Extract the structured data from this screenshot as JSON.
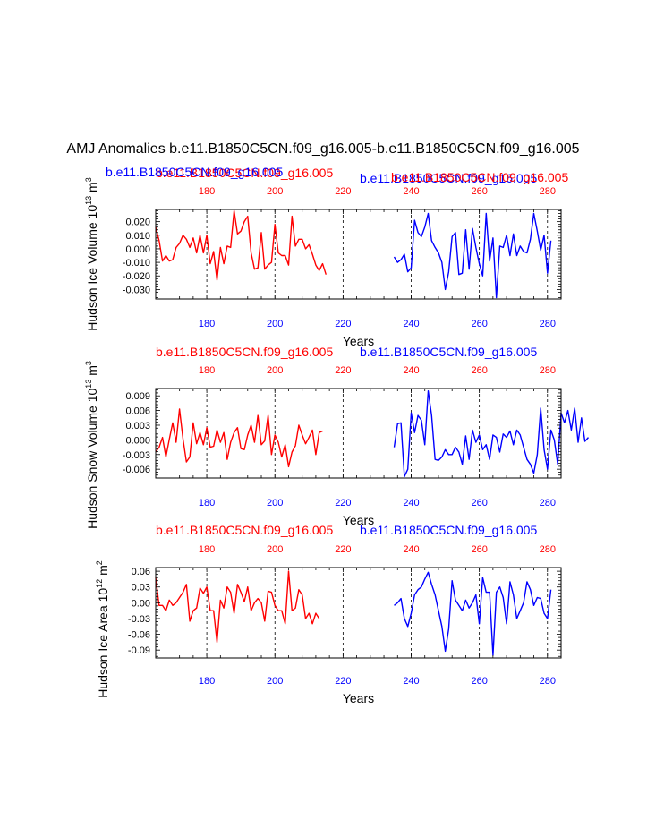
{
  "title": "AMJ Anomalies b.e11.B1850C5CN.f09_g16.005-b.e11.B1850C5CN.f09_g16.005",
  "colors": {
    "run1": "#ff0000",
    "run2": "#0000ff",
    "axis": "#000000",
    "grid": "#000000"
  },
  "chart_data": [
    {
      "type": "line",
      "panel": "ice-volume",
      "ylabel_main": "Hudson Ice Volume 10",
      "ylabel_exp": "13",
      "ylabel_unit": " m",
      "ylabel_unit_exp": "3",
      "xlabel": "Years",
      "xlim": [
        165,
        284
      ],
      "ylim": [
        -0.037,
        0.029
      ],
      "xticks": [
        180,
        200,
        220,
        240,
        260,
        280
      ],
      "yticks": [
        -0.03,
        -0.02,
        -0.01,
        0.0,
        0.01,
        0.02
      ],
      "ytick_labels": [
        "-0.030",
        "-0.020",
        "-0.010",
        "0.000",
        "0.010",
        "0.020"
      ],
      "red_top_tick_labels": [
        "180",
        "200",
        "220",
        "240",
        "260",
        "280"
      ],
      "blue_bottom_tick_labels": [
        "180",
        "200",
        "220",
        "240",
        "260",
        "280"
      ],
      "series_titles": [
        {
          "name": "run-1-red",
          "text": "b.e11.B1850C5CN.f09_g16.005"
        },
        {
          "name": "run-2-blue",
          "text": "b.e11.B1850C5CN.f09_g16.005"
        },
        {
          "name": "run-1-red-overlap",
          "text": "b.e11.B1850C5CN.f09_g16.005"
        },
        {
          "name": "run-2-blue-overlap",
          "text": "b.e11.B1850C5CN.f09_g16.005"
        }
      ],
      "series": [
        {
          "name": "b.e11.B1850C5CN.f09_g16.005",
          "color": "red",
          "x0": 165,
          "values": [
            0.016,
            0.006,
            -0.009,
            -0.005,
            -0.009,
            -0.008,
            0.001,
            0.004,
            0.01,
            0.007,
            0.001,
            0.008,
            -0.003,
            0.01,
            -0.003,
            0.01,
            -0.011,
            -0.002,
            -0.023,
            0.001,
            -0.011,
            0.002,
            0.001,
            0.028,
            0.011,
            0.013,
            0.02,
            0.024,
            -0.003,
            -0.015,
            -0.014,
            0.012,
            -0.015,
            -0.012,
            -0.01,
            0.018,
            -0.003,
            -0.005,
            -0.005,
            -0.012,
            0.024,
            0.002,
            0.007,
            0.007,
            0.0,
            0.003,
            -0.004,
            -0.012,
            -0.016,
            -0.011,
            -0.019
          ]
        },
        {
          "name": "b.e11.B1850C5CN.f09_g16.005",
          "color": "blue",
          "x0": 235,
          "values": [
            -0.006,
            -0.01,
            -0.008,
            -0.004,
            -0.017,
            -0.014,
            0.021,
            0.012,
            0.009,
            0.016,
            0.026,
            0.006,
            0.001,
            -0.003,
            -0.01,
            -0.03,
            -0.017,
            0.009,
            0.012,
            -0.019,
            -0.018,
            0.014,
            -0.015,
            0.015,
            0.001,
            -0.011,
            -0.02,
            0.026,
            -0.009,
            0.008,
            -0.036,
            0.002,
            0.001,
            0.01,
            -0.005,
            0.011,
            -0.005,
            0.002,
            -0.002,
            -0.003,
            0.007,
            0.026,
            0.013,
            -0.001,
            0.01,
            -0.018,
            0.006
          ]
        }
      ]
    },
    {
      "type": "line",
      "panel": "snow-volume",
      "ylabel_main": "Hudson Snow Volume 10",
      "ylabel_exp": "13",
      "ylabel_unit": " m",
      "ylabel_unit_exp": "3",
      "xlabel": "Years",
      "xlim": [
        165,
        284
      ],
      "ylim": [
        -0.0078,
        0.0105
      ],
      "xticks": [
        180,
        200,
        220,
        240,
        260,
        280
      ],
      "yticks": [
        -0.006,
        -0.003,
        0.0,
        0.003,
        0.006,
        0.009
      ],
      "ytick_labels": [
        "-0.006",
        "-0.003",
        "0.000",
        "0.003",
        "0.006",
        "0.009"
      ],
      "red_top_tick_labels": [
        "180",
        "200",
        "220",
        "240",
        "260",
        "280"
      ],
      "blue_bottom_tick_labels": [
        "180",
        "200",
        "220",
        "240",
        "260",
        "280"
      ],
      "series_titles": [
        {
          "name": "run-1-red",
          "text": "b.e11.B1850C5CN.f09_g16.005"
        },
        {
          "name": "run-2-blue",
          "text": "b.e11.B1850C5CN.f09_g16.005"
        }
      ],
      "series": [
        {
          "name": "b.e11.B1850C5CN.f09_g16.005",
          "color": "red",
          "x0": 165,
          "values": [
            -0.0025,
            -0.0015,
            0.0005,
            -0.0035,
            0.0001,
            0.0035,
            -0.0005,
            0.0063,
            0.0002,
            -0.0045,
            -0.0035,
            0.0035,
            -0.0008,
            0.0015,
            -0.001,
            0.0025,
            -0.0015,
            -0.0013,
            0.002,
            -0.0005,
            0.0015,
            -0.004,
            -0.0005,
            0.0015,
            0.0025,
            -0.0018,
            -0.002,
            0.001,
            0.003,
            -0.0005,
            0.005,
            -0.001,
            -0.0002,
            0.005,
            -0.003,
            0.001,
            -0.0005,
            -0.0035,
            -0.001,
            -0.0055,
            -0.0025,
            -0.0012,
            0.003,
            0.001,
            -0.0008,
            0.0005,
            0.002,
            -0.003,
            0.0015,
            0.0018
          ]
        },
        {
          "name": "b.e11.B1850C5CN.f09_g16.005",
          "color": "blue",
          "x0": 235,
          "values": [
            -0.0015,
            0.0033,
            0.0035,
            -0.0075,
            -0.006,
            0.0055,
            0.0015,
            0.005,
            0.004,
            -0.001,
            0.01,
            0.005,
            -0.004,
            -0.0042,
            -0.0035,
            -0.002,
            -0.003,
            -0.003,
            -0.0015,
            -0.0025,
            -0.005,
            0.0008,
            -0.004,
            0.002,
            -0.0005,
            0.001,
            -0.002,
            -0.001,
            -0.004,
            0.001,
            0.0005,
            -0.0025,
            0.0012,
            0.0005,
            0.0018,
            -0.001,
            0.002,
            0.001,
            -0.0015,
            -0.004,
            -0.005,
            -0.0068,
            -0.003,
            0.0065,
            -0.002,
            -0.006,
            0.002,
            0.0,
            -0.005,
            0.0055,
            0.0035,
            0.006,
            0.002,
            0.0065,
            -0.0005,
            0.0045,
            -0.0003,
            0.0005
          ]
        }
      ]
    },
    {
      "type": "line",
      "panel": "ice-area",
      "ylabel_main": "Hudson Ice Area 10",
      "ylabel_exp": "12",
      "ylabel_unit": " m",
      "ylabel_unit_exp": "2",
      "xlabel": "Years",
      "xlim": [
        165,
        284
      ],
      "ylim": [
        -0.105,
        0.067
      ],
      "xticks": [
        180,
        200,
        220,
        240,
        260,
        280
      ],
      "yticks": [
        -0.09,
        -0.06,
        -0.03,
        0.0,
        0.03,
        0.06
      ],
      "ytick_labels": [
        "-0.09",
        "-0.06",
        "-0.03",
        "0.00",
        "0.03",
        "0.06"
      ],
      "red_top_tick_labels": [
        "180",
        "200",
        "220",
        "240",
        "260",
        "280"
      ],
      "blue_bottom_tick_labels": [
        "180",
        "200",
        "220",
        "240",
        "260",
        "280"
      ],
      "series_titles": [
        {
          "name": "run-1-red",
          "text": "b.e11.B1850C5CN.f09_g16.005"
        },
        {
          "name": "run-2-blue",
          "text": "b.e11.B1850C5CN.f09_g16.005"
        }
      ],
      "series": [
        {
          "name": "b.e11.B1850C5CN.f09_g16.005",
          "color": "red",
          "x0": 165,
          "values": [
            0.048,
            -0.005,
            -0.005,
            -0.015,
            0.005,
            -0.005,
            0.0,
            0.01,
            0.02,
            0.035,
            -0.035,
            -0.015,
            -0.01,
            0.028,
            0.018,
            0.03,
            -0.015,
            -0.015,
            -0.075,
            0.005,
            -0.01,
            0.03,
            0.02,
            -0.02,
            0.035,
            0.02,
            0.002,
            0.03,
            -0.015,
            0.0,
            0.008,
            0.0,
            -0.035,
            0.022,
            0.02,
            -0.005,
            -0.015,
            -0.015,
            -0.04,
            0.06,
            -0.015,
            -0.01,
            0.025,
            0.015,
            -0.03,
            -0.02,
            -0.04,
            -0.02,
            -0.03
          ]
        },
        {
          "name": "b.e11.B1850C5CN.f09_g16.005",
          "color": "blue",
          "x0": 235,
          "values": [
            -0.005,
            0.0,
            0.008,
            -0.03,
            -0.045,
            -0.02,
            0.015,
            0.025,
            0.03,
            0.045,
            0.058,
            0.035,
            0.015,
            -0.015,
            -0.045,
            -0.092,
            -0.05,
            0.042,
            0.005,
            -0.005,
            -0.015,
            0.005,
            -0.01,
            0.0,
            0.015,
            -0.04,
            0.048,
            0.02,
            0.02,
            -0.1,
            0.02,
            0.03,
            0.01,
            -0.04,
            0.04,
            0.015,
            -0.03,
            -0.015,
            0.0,
            0.04,
            0.025,
            -0.005,
            0.01,
            0.008,
            -0.02,
            -0.03,
            0.025
          ]
        }
      ]
    }
  ]
}
